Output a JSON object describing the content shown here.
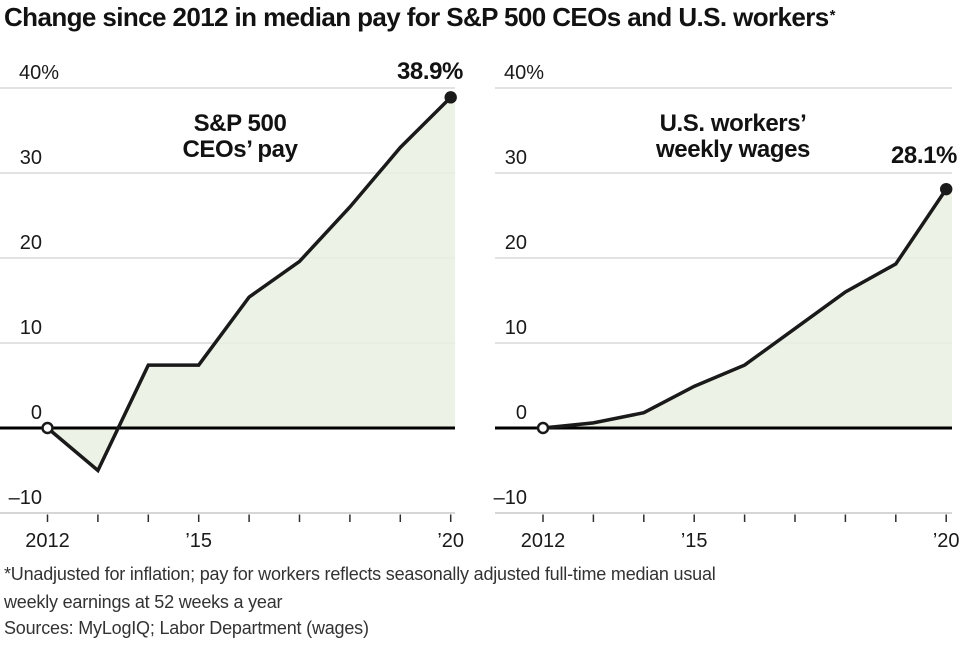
{
  "title": {
    "text": "Change since 2012 in median pay for S&P 500 CEOs and U.S. workers",
    "footnote_marker": "*"
  },
  "chart_data": [
    {
      "type": "area",
      "name": "sp500-ceos-pay",
      "title_lines": [
        "S&P 500",
        "CEOs’ pay"
      ],
      "categories": [
        2012,
        2013,
        2014,
        2015,
        2016,
        2017,
        2018,
        2019,
        2020
      ],
      "values": [
        0,
        -5,
        7.4,
        7.4,
        15.4,
        19.6,
        26,
        33,
        38.9
      ],
      "end_label": "38.9%",
      "x_tick_labels": [
        {
          "index": 0,
          "label": "2012"
        },
        {
          "index": 3,
          "label": "’15"
        },
        {
          "index": 8,
          "label": "’20"
        }
      ],
      "y_tick_labels": [
        {
          "value": 40,
          "label": "40%"
        },
        {
          "value": 30,
          "label": "30"
        },
        {
          "value": 20,
          "label": "20"
        },
        {
          "value": 10,
          "label": "10"
        },
        {
          "value": 0,
          "label": "0"
        },
        {
          "value": -10,
          "label": "–10"
        }
      ],
      "ylim": [
        -10,
        40
      ],
      "grid": true,
      "legend": "none",
      "fill_color": "#e9f1e2",
      "line_color": "#1a1a1a"
    },
    {
      "type": "area",
      "name": "us-workers-weekly-wages",
      "title_lines": [
        "U.S. workers’",
        "weekly wages"
      ],
      "categories": [
        2012,
        2013,
        2014,
        2015,
        2016,
        2017,
        2018,
        2019,
        2020
      ],
      "values": [
        0,
        0.6,
        1.8,
        4.9,
        7.4,
        11.7,
        16,
        19.3,
        28.1
      ],
      "end_label": "28.1%",
      "x_tick_labels": [
        {
          "index": 0,
          "label": "2012"
        },
        {
          "index": 3,
          "label": "’15"
        },
        {
          "index": 8,
          "label": "’20"
        }
      ],
      "y_tick_labels": [
        {
          "value": 40,
          "label": "40%"
        },
        {
          "value": 30,
          "label": "30"
        },
        {
          "value": 20,
          "label": "20"
        },
        {
          "value": 10,
          "label": "10"
        },
        {
          "value": 0,
          "label": "0"
        },
        {
          "value": -10,
          "label": "–10"
        }
      ],
      "ylim": [
        -10,
        40
      ],
      "grid": true,
      "legend": "none",
      "fill_color": "#e9f1e2",
      "line_color": "#1a1a1a"
    }
  ],
  "colors": {
    "gridline": "#d9d9d9",
    "axis_baseline": "#c9c9c9",
    "zero_line": "#000000",
    "tick_mark": "#2e2e2e",
    "label_text": "#1a1a1a"
  },
  "footer": {
    "footnote_line1": "*Unadjusted for inflation; pay for workers reflects seasonally adjusted full-time median usual",
    "footnote_line2": "weekly earnings at 52 weeks a year",
    "sources": "Sources: MyLogIQ; Labor Department (wages)"
  }
}
